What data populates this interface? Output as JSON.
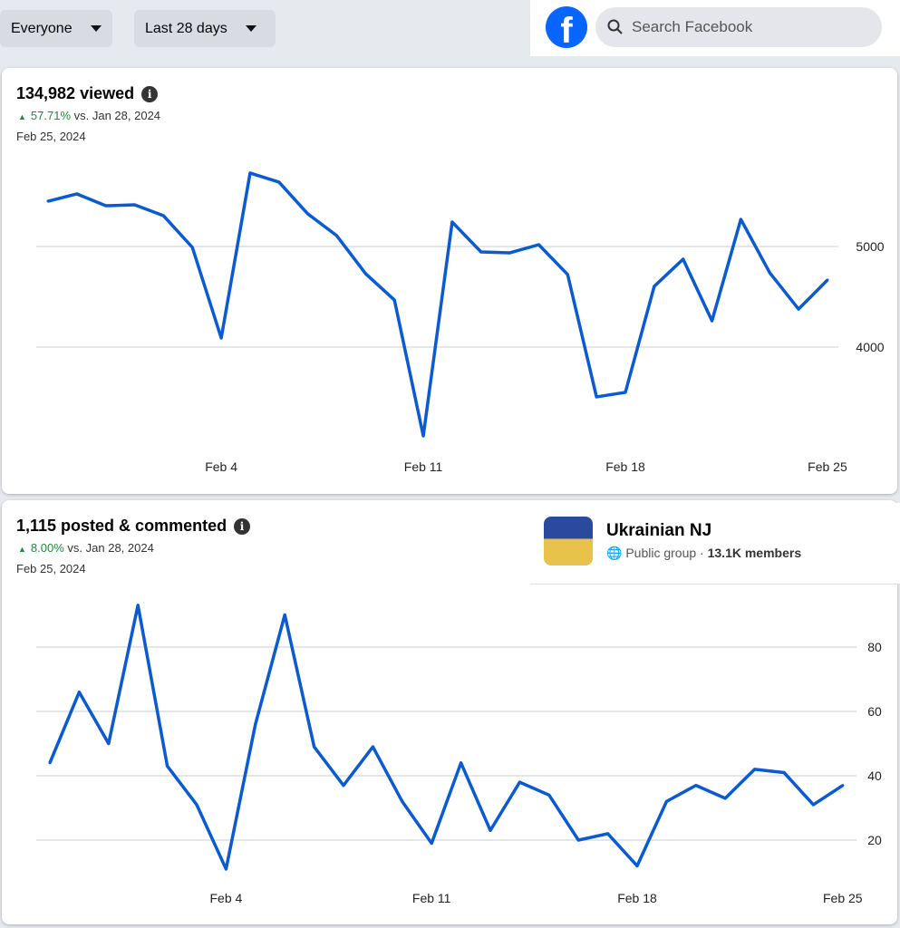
{
  "filters": {
    "audience": "Everyone",
    "range": "Last 28 days"
  },
  "search": {
    "placeholder": "Search Facebook"
  },
  "views": {
    "title": "134,982 viewed",
    "pct": "57.71%",
    "compare": "vs. Jan 28, 2024",
    "date": "Feb 25, 2024"
  },
  "engagement": {
    "title": "1,115 posted & commented",
    "pct": "8.00%",
    "compare": "vs. Jan 28, 2024",
    "date": "Feb 25, 2024"
  },
  "group": {
    "name": "Ukrainian NJ",
    "type": "Public group",
    "members": "13.1K members"
  },
  "chart_data": [
    {
      "type": "line",
      "title": "134,982 viewed",
      "x_labels": [
        "Feb 4",
        "Feb 11",
        "Feb 18",
        "Feb 25"
      ],
      "x_label_index": [
        6,
        13,
        20,
        27
      ],
      "y_ticks": [
        4000,
        5000
      ],
      "y_tick_labels": [
        "4000",
        "5000"
      ],
      "color": "#0a5ad4",
      "values": [
        5450,
        5523,
        5405,
        5414,
        5306,
        4991,
        4090,
        5730,
        5640,
        5324,
        5108,
        4730,
        4468,
        3117,
        5243,
        4946,
        4937,
        5018,
        4721,
        3505,
        3550,
        4604,
        4874,
        4261,
        5270,
        4739,
        4378,
        4667
      ]
    },
    {
      "type": "line",
      "title": "1,115 posted & commented",
      "x_labels": [
        "Feb 4",
        "Feb 11",
        "Feb 18",
        "Feb 25"
      ],
      "x_label_index": [
        6,
        13,
        20,
        27
      ],
      "y_ticks": [
        20,
        40,
        60,
        80
      ],
      "y_tick_labels": [
        "20",
        "40",
        "60",
        "80"
      ],
      "color": "#0a5ad4",
      "values": [
        44,
        66,
        50,
        93,
        43,
        31,
        11,
        56,
        90,
        49,
        37,
        49,
        32,
        19,
        44,
        23,
        38,
        34,
        20,
        22,
        12,
        32,
        37,
        33,
        42,
        41,
        31,
        37
      ]
    }
  ]
}
